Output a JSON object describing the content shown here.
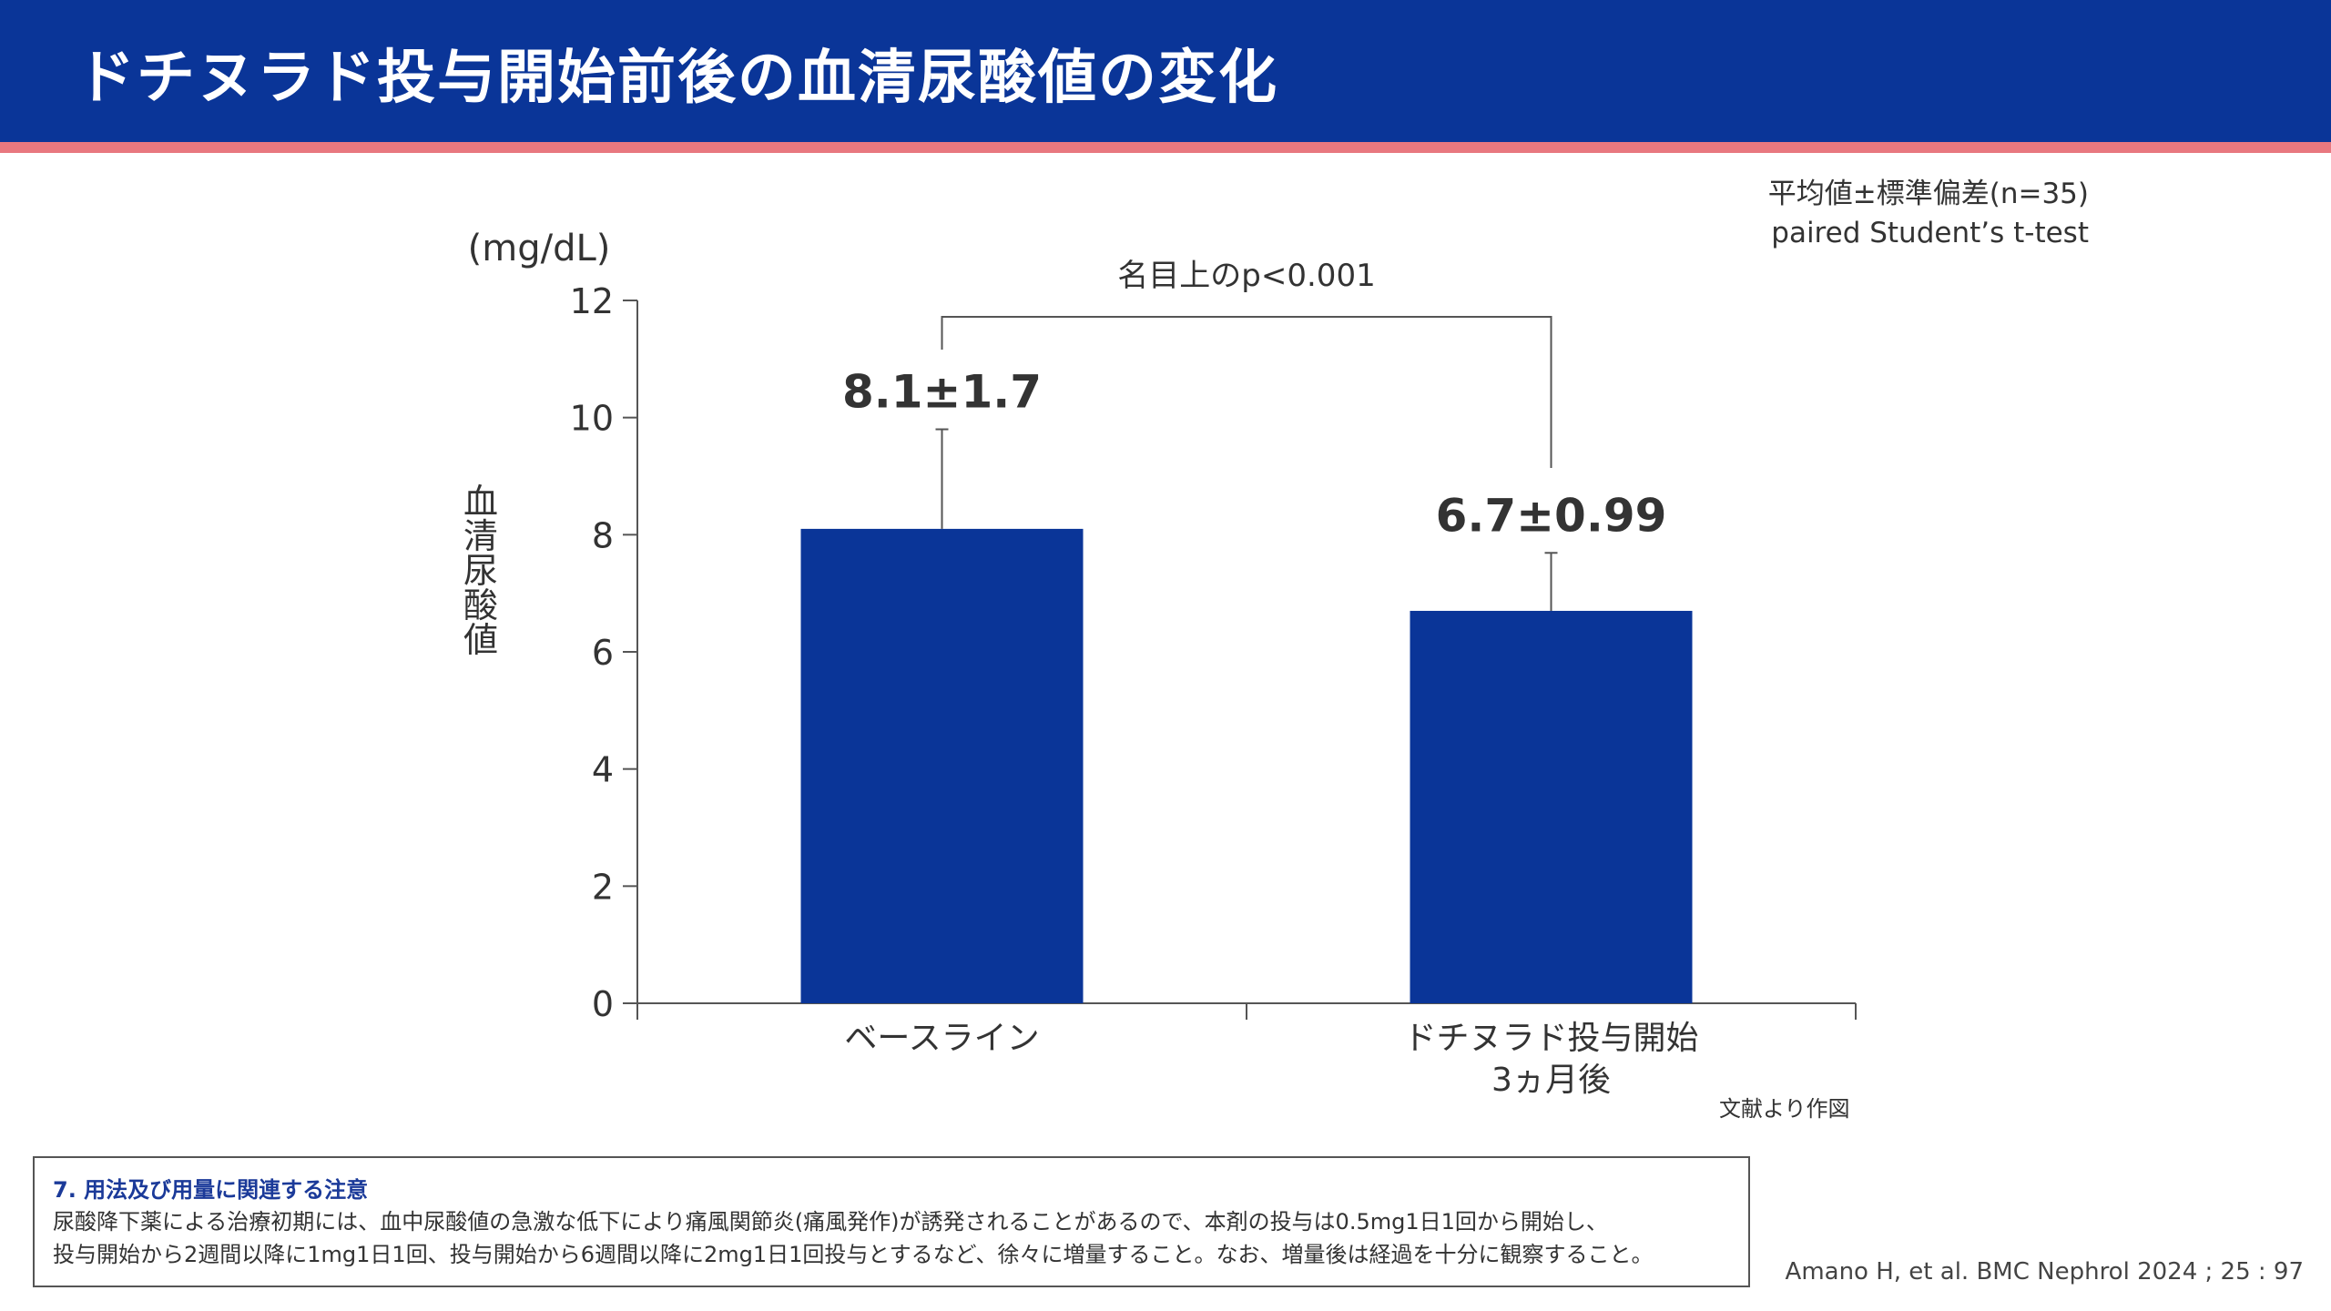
{
  "header": {
    "title": "ドチヌラド投与開始前後の血清尿酸値の変化"
  },
  "stats_note": {
    "line1": "平均値±標準偏差(n=35)",
    "line2": "paired Student’s t-test"
  },
  "chart_data": {
    "type": "bar",
    "title": "",
    "unit_label": "(mg/dL)",
    "ylabel": "血清尿酸値",
    "xlabel": "",
    "categories": [
      "ベースライン",
      "ドチヌラド投与開始\n3ヵ月後"
    ],
    "values": [
      8.1,
      6.7
    ],
    "errors": [
      1.7,
      0.99
    ],
    "value_labels": [
      "8.1±1.7",
      "6.7±0.99"
    ],
    "ylim": [
      0,
      12
    ],
    "yticks": [
      0,
      2,
      4,
      6,
      8,
      10,
      12
    ],
    "bar_color": "#0a3598",
    "grid": false,
    "significance": {
      "from": 0,
      "to": 1,
      "label": "名目上のp<0.001"
    }
  },
  "source_note": "文献より作図",
  "precaution": {
    "heading": "7. 用法及び用量に関連する注意",
    "line1": "尿酸降下薬による治療初期には、血中尿酸値の急激な低下により痛風関節炎(痛風発作)が誘発されることがあるので、本剤の投与は0.5mg1日1回から開始し、",
    "line2": "投与開始から2週間以降に1mg1日1回、投与開始から6週間以降に2mg1日1回投与とするなど、徐々に増量すること。なお、増量後は経過を十分に観察すること。"
  },
  "citation": "Amano H, et al. BMC Nephrol 2024 ; 25 : 97",
  "colors": {
    "header_bg": "#0a3598",
    "accent_stripe": "#e8787f",
    "bar": "#0a3598",
    "heading_blue": "#1b3a99"
  }
}
